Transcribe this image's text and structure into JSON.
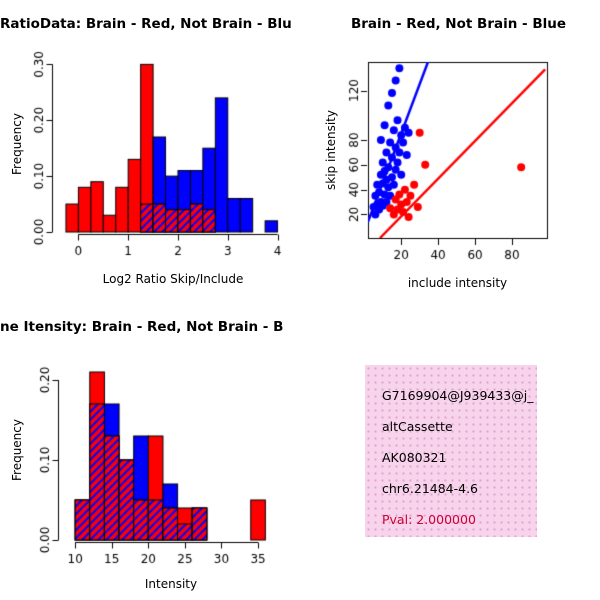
{
  "page": {
    "background": "#FFFFFF"
  },
  "colors": {
    "red": "#FF0000",
    "blue": "#0000FF",
    "axis": "#000000"
  },
  "chart_data": [
    {
      "id": "log2ratio-histogram",
      "type": "bar",
      "subtype": "overlaid-histogram",
      "title": "RatioData: Brain - Red, Not Brain - Blu",
      "xlabel": "Log2 Ratio Skip/Include",
      "ylabel": "Frequency",
      "xlim": [
        -0.45,
        4.25
      ],
      "ylim": [
        0,
        0.315
      ],
      "xticks": [
        0,
        1,
        2,
        3,
        4
      ],
      "xtick_labels": [
        "0",
        "1",
        "2",
        "3",
        "4"
      ],
      "yticks": [
        0,
        0.1,
        0.2,
        0.3
      ],
      "ytick_labels": [
        "0.00",
        "0.10",
        "0.20",
        "0.30"
      ],
      "grid": false,
      "legend": "none",
      "bin_start": -0.25,
      "bin_width": 0.25,
      "series": [
        {
          "name": "Brain",
          "color": "#FF0000",
          "values": [
            0.05,
            0.08,
            0.09,
            0.03,
            0.08,
            0.13,
            0.3,
            0.05,
            0.04,
            0.04,
            0.05,
            0.04,
            0,
            0,
            0,
            0,
            0,
            0
          ]
        },
        {
          "name": "Not Brain",
          "color": "#0000FF",
          "values": [
            0,
            0,
            0,
            0,
            0,
            0,
            0.05,
            0.17,
            0.1,
            0.11,
            0.11,
            0.15,
            0.24,
            0.06,
            0.06,
            0,
            0.02,
            0
          ]
        }
      ]
    },
    {
      "id": "intensity-scatter",
      "type": "scatter",
      "title": "Brain - Red, Not Brain - Blue",
      "xlabel": "include intensity",
      "ylabel": "skip intensity",
      "xlim": [
        2,
        99
      ],
      "ylim": [
        1,
        143
      ],
      "xticks": [
        20,
        40,
        60,
        80
      ],
      "yticks": [
        20,
        40,
        60,
        80,
        120
      ],
      "grid": false,
      "legend": "none",
      "series": [
        {
          "name": "Not Brain",
          "color": "#0000FF",
          "x": [
            5,
            6,
            6,
            7,
            7,
            8,
            8,
            9,
            9,
            9,
            10,
            10,
            10,
            11,
            11,
            11,
            12,
            12,
            12,
            13,
            13,
            13,
            14,
            14,
            15,
            15,
            15,
            16,
            16,
            17,
            17,
            17,
            18,
            18,
            19,
            19,
            20,
            20,
            21,
            22,
            23,
            24
          ],
          "y": [
            26,
            20,
            35,
            28,
            44,
            24,
            38,
            30,
            52,
            80,
            27,
            45,
            62,
            36,
            55,
            92,
            30,
            48,
            70,
            42,
            58,
            108,
            35,
            78,
            50,
            66,
            118,
            44,
            88,
            56,
            74,
            128,
            62,
            96,
            70,
            138,
            52,
            84,
            78,
            90,
            68,
            86
          ]
        },
        {
          "name": "Brain",
          "color": "#FF0000",
          "x": [
            14,
            16,
            17,
            18,
            19,
            20,
            21,
            22,
            23,
            24,
            25,
            27,
            29,
            30,
            33,
            85
          ],
          "y": [
            25,
            20,
            32,
            24,
            36,
            28,
            22,
            40,
            30,
            18,
            35,
            44,
            26,
            86,
            60,
            58
          ]
        }
      ],
      "lines": [
        {
          "name": "not-brain-fit",
          "color": "#0000FF",
          "x": [
            2,
            34.5
          ],
          "y": [
            14,
            143
          ]
        },
        {
          "name": "brain-fit",
          "color": "#FF0000",
          "x": [
            8.5,
            98
          ],
          "y": [
            1,
            137
          ]
        }
      ]
    },
    {
      "id": "gene-intensity-histogram",
      "type": "bar",
      "subtype": "overlaid-histogram",
      "title": "ne Itensity: Brain - Red, Not Brain - B",
      "xlabel": "Intensity",
      "ylabel": "Frequency",
      "xlim": [
        8.2,
        38
      ],
      "ylim": [
        0,
        0.225
      ],
      "xticks": [
        10,
        15,
        20,
        25,
        30,
        35
      ],
      "xtick_labels": [
        "10",
        "15",
        "20",
        "25",
        "30",
        "35"
      ],
      "yticks": [
        0,
        0.1,
        0.2
      ],
      "ytick_labels": [
        "0.00",
        "0.10",
        "0.20"
      ],
      "grid": false,
      "legend": "none",
      "bin_start": 10,
      "bin_width": 2,
      "series": [
        {
          "name": "Brain",
          "color": "#FF0000",
          "values": [
            0.05,
            0.21,
            0.13,
            0.1,
            0.05,
            0.13,
            0.04,
            0.04,
            0.04,
            0,
            0,
            0,
            0.05
          ]
        },
        {
          "name": "Not Brain",
          "color": "#0000FF",
          "values": [
            0.05,
            0.17,
            0.17,
            0.1,
            0.13,
            0.05,
            0.07,
            0.02,
            0.04,
            0,
            0,
            0,
            0
          ]
        }
      ]
    }
  ],
  "info_box": {
    "background": "#F7D3EC",
    "dot_color": "#E2A3CF",
    "lines": [
      "G7169904@J939433@j_",
      "altCassette",
      "AK080321",
      "chr6.21484-4.6"
    ],
    "pval": "Pval: 2.000000",
    "pval_color": "#CC0033"
  }
}
